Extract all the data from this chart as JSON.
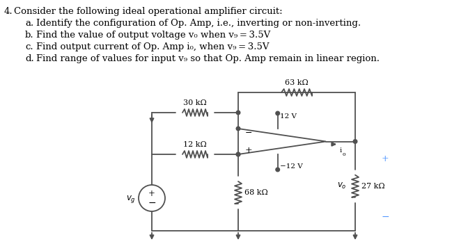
{
  "bg_color": "#ffffff",
  "text_color": "#000000",
  "circuit_color": "#505050",
  "title": "Consider the following ideal operational amplifier circuit:",
  "items": [
    [
      "a.",
      "Identify the configuration of Op. Amp, i.e., inverting or non-inverting."
    ],
    [
      "b.",
      "Find the value of output voltage v₀ when v₉ = 3.5V"
    ],
    [
      "c.",
      "Find output current of Op. Amp i₀, when v₉ = 3.5V"
    ],
    [
      "d.",
      "Find range of values for input v₉ so that Op. Amp remain in linear region."
    ]
  ],
  "R1_label": "30 kΩ",
  "R2_label": "12 kΩ",
  "R3_label": "63 kΩ",
  "R4_label": "68 kΩ",
  "R5_label": "27 kΩ",
  "supply_pos": "12 V",
  "supply_neg": "-12 V",
  "vo_label": "v₀",
  "vg_label": "v₉",
  "plus_color": "#5599ff",
  "minus_color": "#5599ff"
}
